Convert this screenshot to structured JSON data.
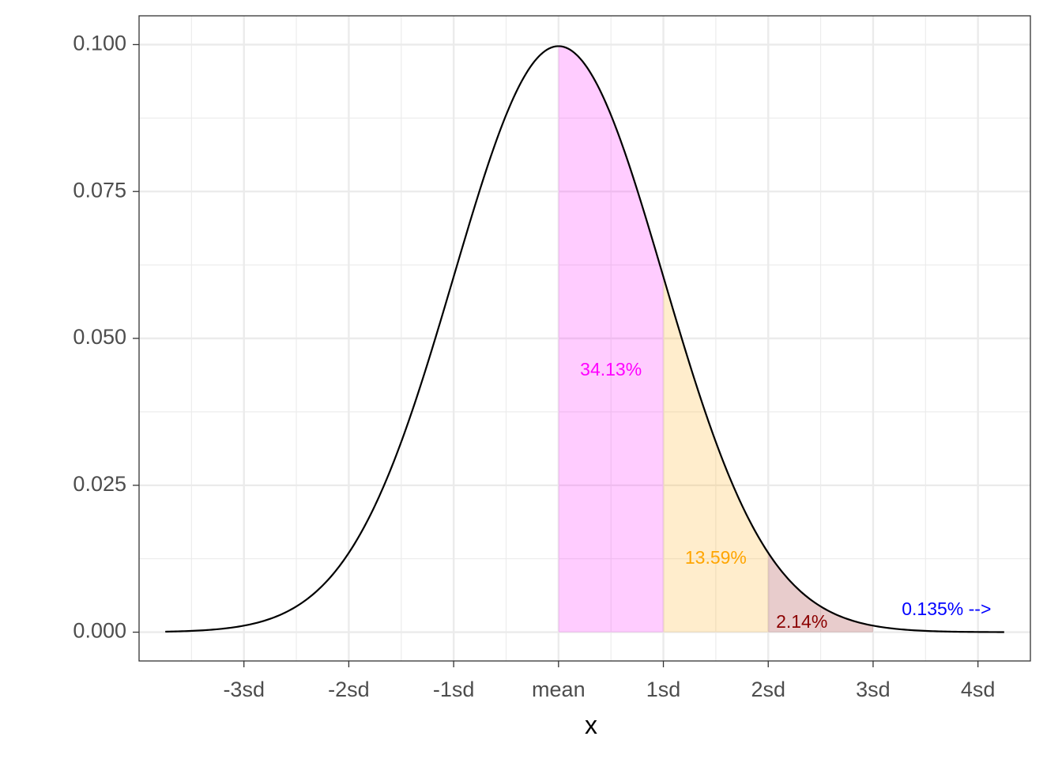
{
  "chart_data": {
    "type": "area",
    "title": "",
    "xlabel": "x",
    "ylabel": "",
    "x_ticks": [
      {
        "value": -3,
        "label": "-3sd"
      },
      {
        "value": -2,
        "label": "-2sd"
      },
      {
        "value": -1,
        "label": "-1sd"
      },
      {
        "value": 0,
        "label": "mean"
      },
      {
        "value": 1,
        "label": "1sd"
      },
      {
        "value": 2,
        "label": "2sd"
      },
      {
        "value": 3,
        "label": "3sd"
      },
      {
        "value": 4,
        "label": "4sd"
      }
    ],
    "y_ticks": [
      {
        "value": 0.0,
        "label": "0.000"
      },
      {
        "value": 0.025,
        "label": "0.025"
      },
      {
        "value": 0.05,
        "label": "0.050"
      },
      {
        "value": 0.075,
        "label": "0.075"
      },
      {
        "value": 0.1,
        "label": "0.100"
      }
    ],
    "xlim": [
      -4.0,
      4.5
    ],
    "ylim": [
      -0.0049,
      0.1049
    ],
    "grid": true,
    "curve": {
      "distribution": "normal",
      "sd_units": 4,
      "peak_density": 0.0997,
      "x_range": [
        -3.75,
        4.25
      ],
      "color": "#000000"
    },
    "shaded_regions": [
      {
        "from": 0,
        "to": 1,
        "color": "#ff00ff",
        "opacity": 0.2
      },
      {
        "from": 1,
        "to": 2,
        "color": "#ffa500",
        "opacity": 0.2
      },
      {
        "from": 2,
        "to": 3,
        "color": "#8b0000",
        "opacity": 0.2
      }
    ],
    "annotations": [
      {
        "text": "34.13%",
        "x": 0.5,
        "y": 0.0445,
        "color": "#ff00ff"
      },
      {
        "text": "13.59%",
        "x": 1.5,
        "y": 0.0125,
        "color": "#ffa500"
      },
      {
        "text": "2.14%",
        "x": 2.32,
        "y": 0.0016,
        "color": "#8b0000"
      },
      {
        "text": "0.135% -->",
        "x": 3.7,
        "y": 0.0037,
        "color": "#0000ff"
      }
    ],
    "theme": "bw"
  }
}
